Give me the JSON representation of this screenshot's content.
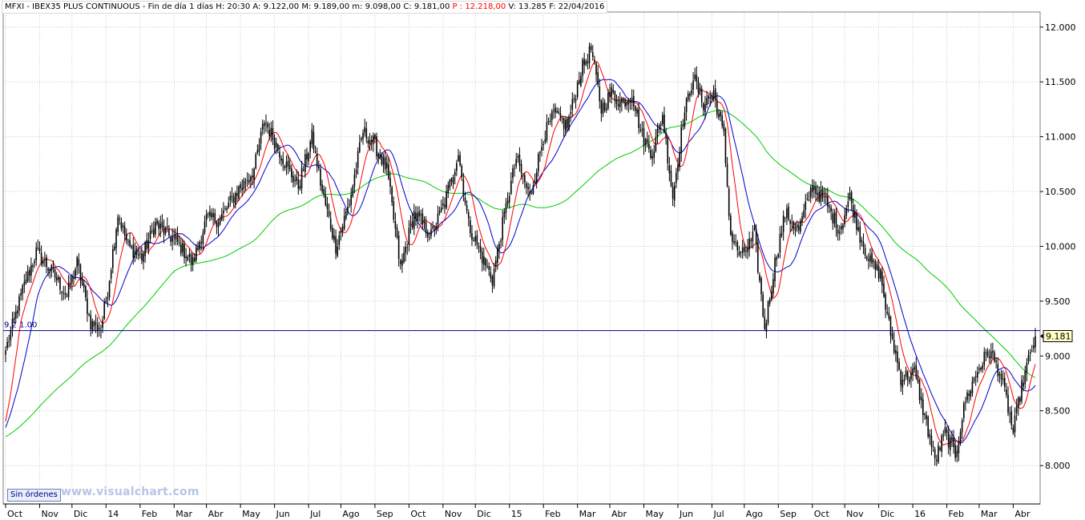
{
  "header": {
    "symbol": "MFXI - IBEX35 PLUS CONTINUOUS - Fin de día 1 días",
    "h_label": "H:",
    "h_value": "20:30",
    "a_label": "A:",
    "a_value": "9.122,00",
    "m_label": "M:",
    "m_value": "9.189,00",
    "mm_label": "m:",
    "mm_value": "9.098,00",
    "c_label": "C:",
    "c_value": "9.181,00",
    "p_label": "P :",
    "p_value": "12.218,00",
    "v_label": "V:",
    "v_value": "13.285",
    "f_label": "F:",
    "f_value": "22/04/2016"
  },
  "footer": {
    "orders_label": "Sin órdenes",
    "watermark": "www.visualchart.com"
  },
  "colors": {
    "candles": "#000000",
    "ma_fast": "#ff0000",
    "ma_mid": "#0000cc",
    "ma_slow": "#00cc00",
    "hline": "#000080",
    "grid": "#c8c8c8"
  },
  "chart_data": {
    "type": "candlestick",
    "ylim": [
      7650,
      12130
    ],
    "y_ticks": [
      8000,
      8500,
      9000,
      9500,
      10000,
      10500,
      11000,
      11500,
      12000
    ],
    "y_tick_labels": [
      "8.000",
      "8.500",
      "9.000",
      "9.500",
      "10.000",
      "10.500",
      "11.000",
      "11.500",
      "12.000"
    ],
    "x_months": [
      "Oct",
      "Nov",
      "Dic",
      "14",
      "Feb",
      "Mar",
      "Abr",
      "May",
      "Jun",
      "Jul",
      "Ago",
      "Sep",
      "Oct",
      "Nov",
      "Dic",
      "15",
      "Feb",
      "Mar",
      "Abr",
      "May",
      "Jun",
      "Jul",
      "Ago",
      "Sep",
      "Oct",
      "Nov",
      "Dic",
      "16",
      "Feb",
      "Mar",
      "Abr"
    ],
    "close_anchors": [
      [
        0,
        9050
      ],
      [
        10,
        9600
      ],
      [
        18,
        9950
      ],
      [
        28,
        9750
      ],
      [
        36,
        9550
      ],
      [
        42,
        9850
      ],
      [
        50,
        9300
      ],
      [
        56,
        9250
      ],
      [
        60,
        9600
      ],
      [
        66,
        10300
      ],
      [
        72,
        10000
      ],
      [
        80,
        9900
      ],
      [
        88,
        10200
      ],
      [
        100,
        10050
      ],
      [
        110,
        9850
      ],
      [
        118,
        10250
      ],
      [
        126,
        10250
      ],
      [
        136,
        10500
      ],
      [
        146,
        10700
      ],
      [
        152,
        11150
      ],
      [
        160,
        10900
      ],
      [
        166,
        10700
      ],
      [
        172,
        10550
      ],
      [
        180,
        11000
      ],
      [
        186,
        10500
      ],
      [
        194,
        10000
      ],
      [
        202,
        10400
      ],
      [
        210,
        11050
      ],
      [
        216,
        10950
      ],
      [
        224,
        10700
      ],
      [
        232,
        9800
      ],
      [
        240,
        10300
      ],
      [
        250,
        10100
      ],
      [
        258,
        10400
      ],
      [
        266,
        10850
      ],
      [
        272,
        10200
      ],
      [
        280,
        9900
      ],
      [
        286,
        9700
      ],
      [
        292,
        10200
      ],
      [
        300,
        10800
      ],
      [
        308,
        10450
      ],
      [
        316,
        11000
      ],
      [
        322,
        11200
      ],
      [
        330,
        11100
      ],
      [
        338,
        11600
      ],
      [
        344,
        11800
      ],
      [
        350,
        11250
      ],
      [
        356,
        11400
      ],
      [
        362,
        11300
      ],
      [
        368,
        11400
      ],
      [
        374,
        11000
      ],
      [
        380,
        10850
      ],
      [
        386,
        11200
      ],
      [
        392,
        10450
      ],
      [
        398,
        11150
      ],
      [
        404,
        11550
      ],
      [
        410,
        11300
      ],
      [
        416,
        11400
      ],
      [
        422,
        11000
      ],
      [
        426,
        10100
      ],
      [
        432,
        9900
      ],
      [
        440,
        10100
      ],
      [
        446,
        9250
      ],
      [
        452,
        9850
      ],
      [
        458,
        10300
      ],
      [
        466,
        10150
      ],
      [
        474,
        10550
      ],
      [
        482,
        10400
      ],
      [
        490,
        10150
      ],
      [
        496,
        10450
      ],
      [
        502,
        10100
      ],
      [
        508,
        9850
      ],
      [
        514,
        9750
      ],
      [
        518,
        9350
      ],
      [
        526,
        8800
      ],
      [
        534,
        8850
      ],
      [
        540,
        8450
      ],
      [
        546,
        8050
      ],
      [
        552,
        8300
      ],
      [
        558,
        8100
      ],
      [
        564,
        8600
      ],
      [
        572,
        8900
      ],
      [
        578,
        9050
      ],
      [
        584,
        8850
      ],
      [
        588,
        8600
      ],
      [
        592,
        8300
      ],
      [
        596,
        8650
      ],
      [
        600,
        8900
      ],
      [
        605,
        9181
      ]
    ],
    "last_value_label": "9.181",
    "hline_value": 9231,
    "hline_label": "9.2 1.00",
    "series": [
      {
        "name": "",
        "kind": "ma_fast",
        "period": 10
      },
      {
        "name": "",
        "kind": "ma_mid",
        "period": 20
      },
      {
        "name": "",
        "kind": "ma_slow",
        "period": 100
      }
    ]
  }
}
